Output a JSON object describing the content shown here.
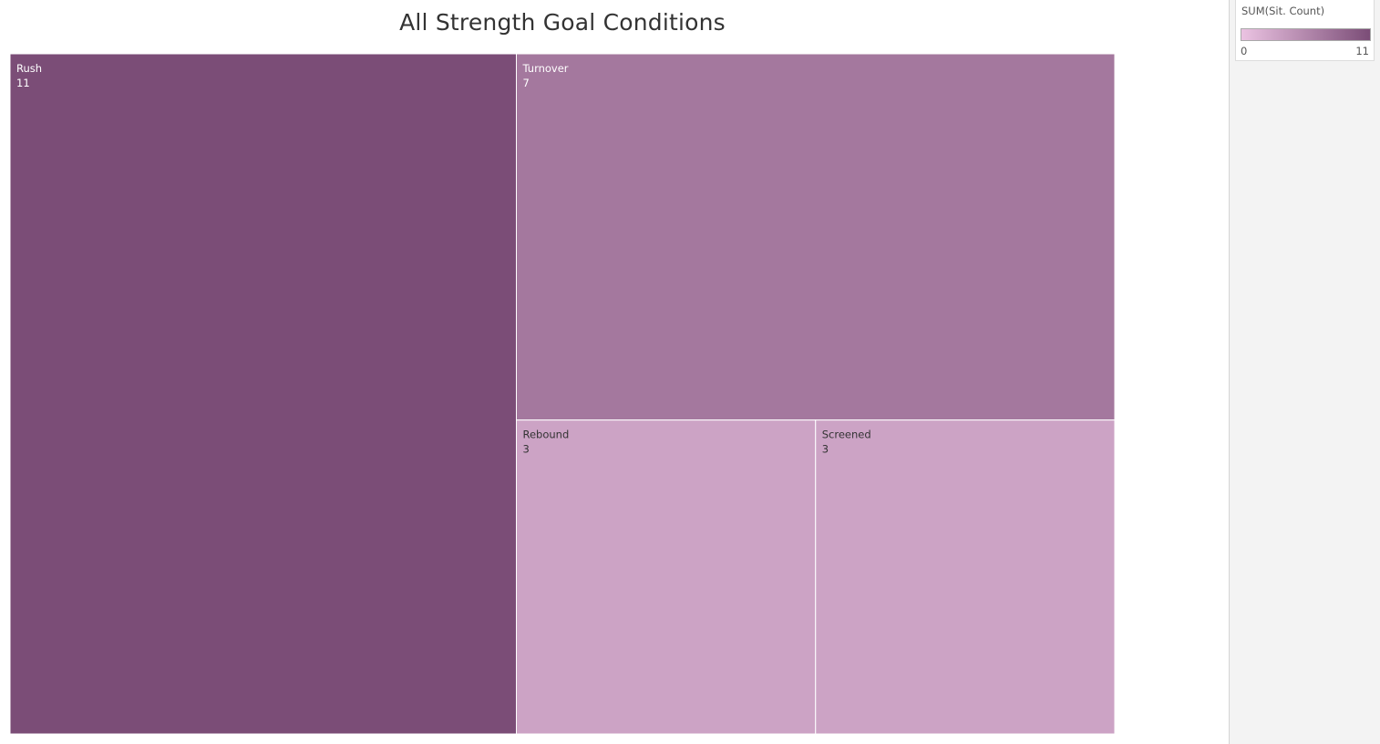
{
  "chart_data": {
    "type": "treemap",
    "title": "All Strength Goal Conditions",
    "measure": "SUM(Sit. Count)",
    "items": [
      {
        "label": "Rush",
        "value": 11
      },
      {
        "label": "Turnover",
        "value": 7
      },
      {
        "label": "Rebound",
        "value": 3
      },
      {
        "label": "Screened",
        "value": 3
      }
    ],
    "color_scale": {
      "min_label": "0",
      "max_label": "11",
      "min_value": 0,
      "max_value": 11,
      "min_color": "#ebc3e2",
      "max_color": "#7b4d77"
    }
  }
}
